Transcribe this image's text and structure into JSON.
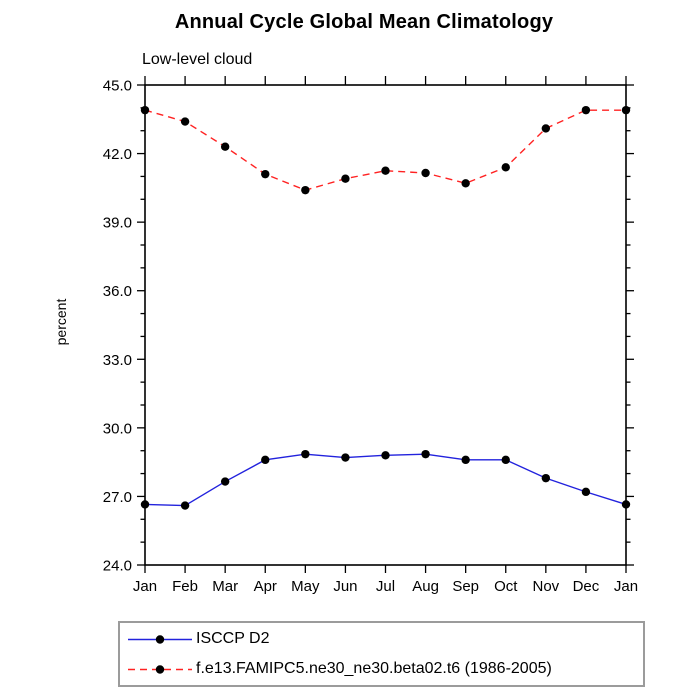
{
  "title": "Annual Cycle Global Mean Climatology",
  "subtitle": "Low-level cloud",
  "chart_data": {
    "type": "line",
    "title": "Annual Cycle Global Mean Climatology",
    "subtitle": "Low-level cloud",
    "xlabel": "",
    "ylabel": "percent",
    "categories": [
      "Jan",
      "Feb",
      "Mar",
      "Apr",
      "May",
      "Jun",
      "Jul",
      "Aug",
      "Sep",
      "Oct",
      "Nov",
      "Dec",
      "Jan"
    ],
    "ylim": [
      24.0,
      45.0
    ],
    "y_major_step": 3.0,
    "y_minor_step": 1.0,
    "y_tick_labels": [
      "24.0",
      "27.0",
      "30.0",
      "33.0",
      "36.0",
      "39.0",
      "42.0",
      "45.0"
    ],
    "grid": false,
    "legend_position": "bottom-left",
    "axis_color": "#000000",
    "series": [
      {
        "name": "ISCCP D2",
        "color": "#2222dd",
        "style": "solid",
        "marker": "filled-circle",
        "marker_color": "#000000",
        "values": [
          26.65,
          26.6,
          27.65,
          28.6,
          28.85,
          28.7,
          28.8,
          28.85,
          28.6,
          28.6,
          27.8,
          27.2,
          26.65
        ]
      },
      {
        "name": "f.e13.FAMIPC5.ne30_ne30.beta02.t6 (1986-2005)",
        "color": "#ff2222",
        "style": "dashed",
        "marker": "filled-circle",
        "marker_color": "#000000",
        "values": [
          43.9,
          43.4,
          42.3,
          41.1,
          40.4,
          40.9,
          41.25,
          41.15,
          40.7,
          41.4,
          43.1,
          43.9,
          43.9
        ]
      }
    ]
  }
}
